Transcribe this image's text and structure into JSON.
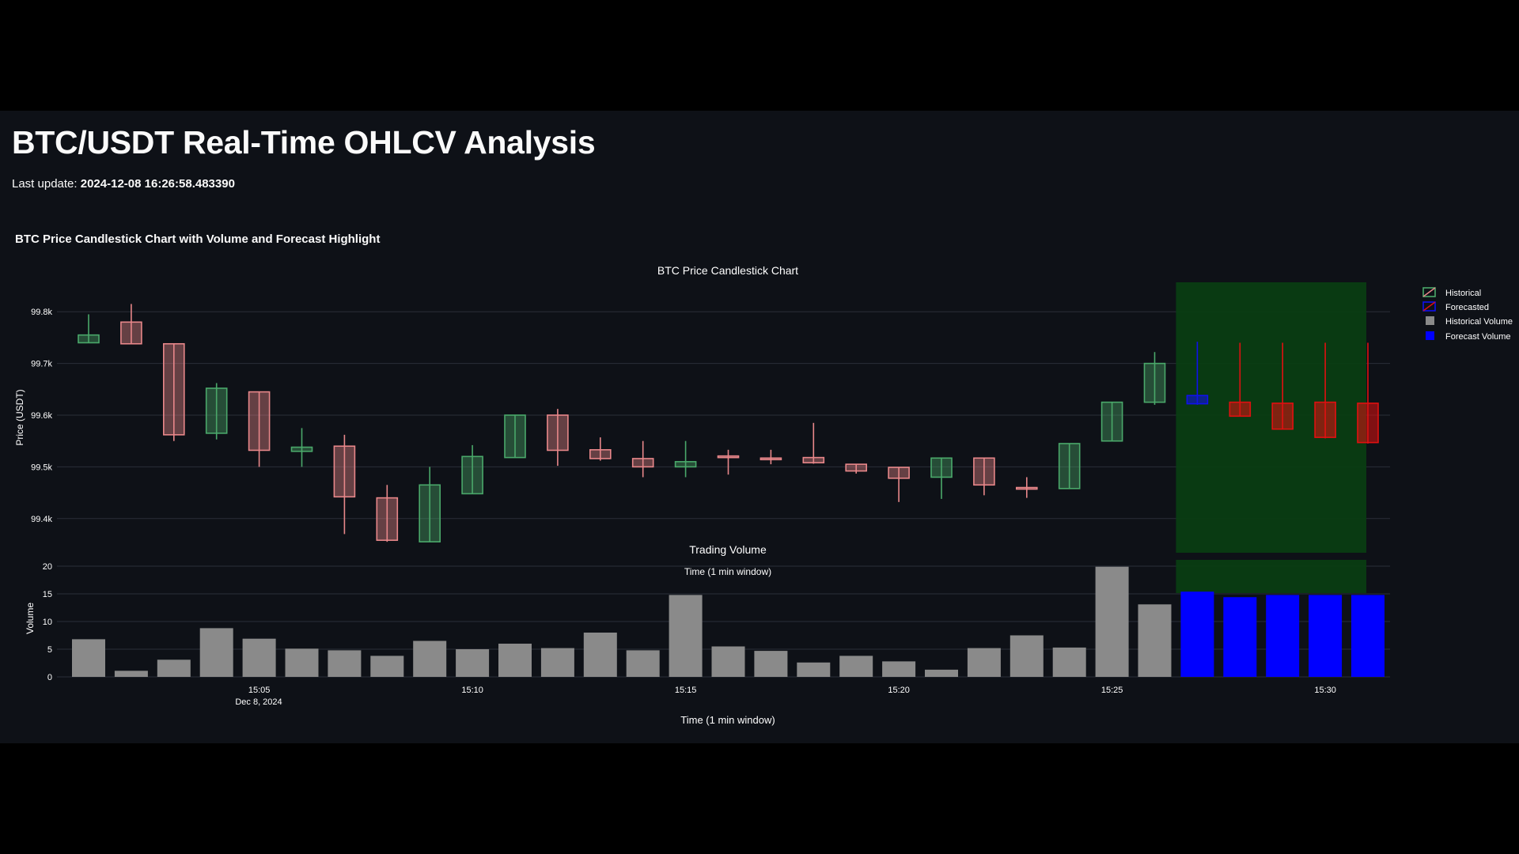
{
  "page": {
    "title": "BTC/USDT Real-Time OHLCV Analysis",
    "last_update_label": "Last update:",
    "last_update_value": "2024-12-08 16:26:58.483390",
    "section_title": "BTC Price Candlestick Chart with Volume and Forecast Highlight"
  },
  "colors": {
    "background": "#0e1117",
    "historical_up": "#4aa86a",
    "historical_down": "#e8878a",
    "forecast_up": "#1010ee",
    "forecast_down": "#e01010",
    "forecast_highlight": "#0a3d12",
    "historical_volume": "#8a8a8a",
    "forecast_volume": "#0000ff"
  },
  "chart_data": [
    {
      "type": "candlestick",
      "title": "BTC Price Candlestick Chart",
      "ylabel": "Price (USDT)",
      "ylim": [
        99340,
        99860
      ],
      "yticks": [
        99400,
        99500,
        99600,
        99700,
        99800
      ],
      "ytick_labels": [
        "99.4k",
        "99.5k",
        "99.6k",
        "99.7k",
        "99.8k"
      ],
      "grid": true,
      "legend_position": "top-right",
      "forecast_window": [
        "15:27",
        "15:31"
      ],
      "series": [
        {
          "name": "Historical",
          "candles": [
            {
              "t": "15:01",
              "open": 99740,
              "high": 99795,
              "low": 99740,
              "close": 99755
            },
            {
              "t": "15:02",
              "open": 99780,
              "high": 99815,
              "low": 99738,
              "close": 99738
            },
            {
              "t": "15:03",
              "open": 99738,
              "high": 99738,
              "low": 99550,
              "close": 99562
            },
            {
              "t": "15:04",
              "open": 99565,
              "high": 99662,
              "low": 99553,
              "close": 99652
            },
            {
              "t": "15:05",
              "open": 99645,
              "high": 99645,
              "low": 99500,
              "close": 99532
            },
            {
              "t": "15:06",
              "open": 99530,
              "high": 99575,
              "low": 99500,
              "close": 99538
            },
            {
              "t": "15:07",
              "open": 99540,
              "high": 99562,
              "low": 99370,
              "close": 99442
            },
            {
              "t": "15:08",
              "open": 99440,
              "high": 99465,
              "low": 99355,
              "close": 99358
            },
            {
              "t": "15:09",
              "open": 99355,
              "high": 99500,
              "low": 99355,
              "close": 99465
            },
            {
              "t": "15:10",
              "open": 99448,
              "high": 99542,
              "low": 99448,
              "close": 99520
            },
            {
              "t": "15:11",
              "open": 99518,
              "high": 99600,
              "low": 99518,
              "close": 99600
            },
            {
              "t": "15:12",
              "open": 99600,
              "high": 99612,
              "low": 99502,
              "close": 99532
            },
            {
              "t": "15:13",
              "open": 99533,
              "high": 99557,
              "low": 99512,
              "close": 99516
            },
            {
              "t": "15:14",
              "open": 99516,
              "high": 99550,
              "low": 99480,
              "close": 99500
            },
            {
              "t": "15:15",
              "open": 99500,
              "high": 99550,
              "low": 99480,
              "close": 99510
            },
            {
              "t": "15:16",
              "open": 99521,
              "high": 99533,
              "low": 99485,
              "close": 99519
            },
            {
              "t": "15:17",
              "open": 99517,
              "high": 99533,
              "low": 99505,
              "close": 99515
            },
            {
              "t": "15:18",
              "open": 99518,
              "high": 99585,
              "low": 99506,
              "close": 99508
            },
            {
              "t": "15:19",
              "open": 99505,
              "high": 99505,
              "low": 99487,
              "close": 99492
            },
            {
              "t": "15:20",
              "open": 99499,
              "high": 99499,
              "low": 99432,
              "close": 99478
            },
            {
              "t": "15:21",
              "open": 99480,
              "high": 99518,
              "low": 99438,
              "close": 99517
            },
            {
              "t": "15:22",
              "open": 99517,
              "high": 99517,
              "low": 99445,
              "close": 99465
            },
            {
              "t": "15:23",
              "open": 99460,
              "high": 99480,
              "low": 99440,
              "close": 99458
            },
            {
              "t": "15:24",
              "open": 99458,
              "high": 99545,
              "low": 99458,
              "close": 99545
            },
            {
              "t": "15:25",
              "open": 99550,
              "high": 99625,
              "low": 99550,
              "close": 99625
            },
            {
              "t": "15:26",
              "open": 99625,
              "high": 99722,
              "low": 99620,
              "close": 99700
            }
          ]
        },
        {
          "name": "Forecasted",
          "candles": [
            {
              "t": "15:27",
              "open": 99622,
              "high": 99742,
              "low": 99620,
              "close": 99638
            },
            {
              "t": "15:28",
              "open": 99625,
              "high": 99740,
              "low": 99598,
              "close": 99598
            },
            {
              "t": "15:29",
              "open": 99623,
              "high": 99740,
              "low": 99572,
              "close": 99573
            },
            {
              "t": "15:30",
              "open": 99625,
              "high": 99740,
              "low": 99555,
              "close": 99557
            },
            {
              "t": "15:31",
              "open": 99623,
              "high": 99740,
              "low": 99545,
              "close": 99547
            }
          ]
        }
      ]
    },
    {
      "type": "bar",
      "title": "Trading Volume",
      "subtitle": "Time (1 min window)",
      "xlabel": "Time (1 min window)",
      "ylabel": "Volume",
      "ylim": [
        0,
        20
      ],
      "yticks": [
        0,
        5,
        10,
        15,
        20
      ],
      "x_ticks": [
        "15:05",
        "15:10",
        "15:15",
        "15:20",
        "15:25",
        "15:30"
      ],
      "x_date_label": "Dec 8, 2024",
      "series": [
        {
          "name": "Historical Volume",
          "values": [
            6.8,
            1.1,
            3.1,
            8.8,
            6.9,
            5.1,
            4.8,
            3.8,
            6.5,
            5.0,
            6.0,
            5.2,
            8.0,
            4.8,
            14.8,
            5.5,
            4.7,
            2.6,
            3.8,
            2.8,
            1.3,
            5.2,
            7.5,
            5.3,
            19.9,
            13.1
          ]
        },
        {
          "name": "Forecast Volume",
          "values": [
            15.4,
            14.4,
            14.8,
            14.8,
            14.8
          ]
        }
      ]
    }
  ]
}
